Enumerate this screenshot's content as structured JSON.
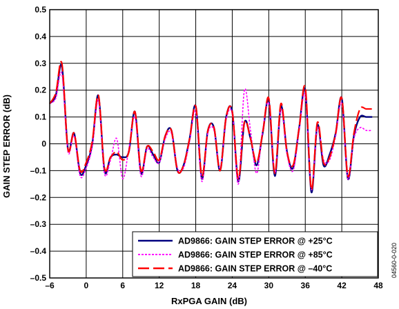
{
  "chart_data": {
    "type": "line",
    "title": "",
    "xlabel": "RxPGA GAIN (dB)",
    "ylabel": "GAIN STEP ERROR (dB)",
    "xlim": [
      -6,
      48
    ],
    "ylim": [
      -0.5,
      0.5
    ],
    "x_ticks": [
      -6,
      0,
      6,
      12,
      18,
      24,
      30,
      36,
      42,
      48
    ],
    "x_tick_labels": [
      "–6",
      "0",
      "6",
      "12",
      "18",
      "24",
      "30",
      "36",
      "42",
      "48"
    ],
    "y_ticks": [
      0.5,
      0.4,
      0.3,
      0.2,
      0.1,
      0,
      -0.1,
      -0.2,
      -0.3,
      -0.4,
      -0.5
    ],
    "y_tick_labels": [
      "0.5",
      "0.4",
      "0.3",
      "0.2",
      "0.1",
      "0",
      "–0.1",
      "–0.2",
      "–0.3",
      "–0.4",
      "–0.5"
    ],
    "grid": true,
    "legend_position": "bottom-right",
    "figure_id": "04560-0-020",
    "series": [
      {
        "name": "AD9866: GAIN STEP ERROR @ +25°C",
        "color": "#00007f",
        "style": "solid",
        "x": [
          -6,
          -5,
          -4,
          -3,
          -2,
          -1,
          0,
          1,
          2,
          3,
          4,
          5,
          6,
          7,
          8,
          9,
          10,
          11,
          12,
          13,
          14,
          15,
          16,
          17,
          18,
          19,
          20,
          21,
          22,
          23,
          24,
          25,
          26,
          27,
          28,
          29,
          30,
          31,
          32,
          33,
          34,
          35,
          36,
          37,
          38,
          39,
          40,
          41,
          42,
          43,
          44,
          45,
          46,
          47
        ],
        "y": [
          0.15,
          0.18,
          0.29,
          -0.02,
          0.04,
          -0.11,
          -0.08,
          0.0,
          0.18,
          -0.1,
          -0.05,
          -0.04,
          -0.05,
          -0.03,
          0.12,
          -0.11,
          -0.01,
          -0.04,
          -0.07,
          0.03,
          0.05,
          -0.1,
          -0.08,
          0.02,
          0.14,
          -0.13,
          0.05,
          0.06,
          -0.1,
          0.1,
          0.12,
          -0.14,
          0.08,
          0.02,
          -0.08,
          0.04,
          0.16,
          -0.12,
          0.14,
          -0.03,
          -0.09,
          0.06,
          0.2,
          -0.18,
          0.07,
          -0.08,
          -0.04,
          0.04,
          0.17,
          -0.13,
          0.03,
          0.1,
          0.1,
          0.1
        ]
      },
      {
        "name": "AD9866: GAIN STEP ERROR @ +85°C",
        "color": "#ff00ff",
        "style": "dotted",
        "x": [
          -6,
          -5,
          -4,
          -3,
          -2,
          -1,
          0,
          1,
          2,
          3,
          4,
          5,
          6,
          7,
          8,
          9,
          10,
          11,
          12,
          13,
          14,
          15,
          16,
          17,
          18,
          19,
          20,
          21,
          22,
          23,
          24,
          25,
          26,
          27,
          28,
          29,
          30,
          31,
          32,
          33,
          34,
          35,
          36,
          37,
          38,
          39,
          40,
          41,
          42,
          43,
          44,
          45,
          46,
          47
        ],
        "y": [
          0.15,
          0.17,
          0.26,
          -0.03,
          0.03,
          -0.12,
          -0.09,
          -0.01,
          0.16,
          -0.11,
          -0.06,
          0.02,
          -0.13,
          -0.02,
          0.1,
          -0.12,
          -0.02,
          -0.05,
          -0.07,
          0.02,
          0.04,
          -0.09,
          -0.09,
          0.01,
          0.12,
          -0.14,
          0.04,
          0.05,
          -0.09,
          0.09,
          0.11,
          -0.15,
          0.2,
          0.05,
          -0.11,
          0.05,
          0.15,
          -0.11,
          0.13,
          -0.04,
          -0.1,
          0.05,
          0.18,
          -0.17,
          0.06,
          -0.06,
          -0.06,
          0.03,
          0.15,
          -0.13,
          0.02,
          0.06,
          0.05,
          0.05
        ]
      },
      {
        "name": "AD9866: GAIN STEP ERROR @ –40°C",
        "color": "#ff0000",
        "style": "dashed",
        "x": [
          -6,
          -5,
          -4,
          -3,
          -2,
          -1,
          0,
          1,
          2,
          3,
          4,
          5,
          6,
          7,
          8,
          9,
          10,
          11,
          12,
          13,
          14,
          15,
          16,
          17,
          18,
          19,
          20,
          21,
          22,
          23,
          24,
          25,
          26,
          27,
          28,
          29,
          30,
          31,
          32,
          33,
          34,
          35,
          36,
          37,
          38,
          39,
          40,
          41,
          42,
          43,
          44,
          45,
          46,
          47
        ],
        "y": [
          0.15,
          0.19,
          0.3,
          -0.02,
          0.04,
          -0.1,
          -0.07,
          0.01,
          0.18,
          -0.09,
          -0.05,
          -0.03,
          -0.06,
          -0.03,
          0.12,
          -0.1,
          -0.01,
          -0.03,
          -0.06,
          0.03,
          0.05,
          -0.1,
          -0.08,
          0.02,
          0.14,
          -0.12,
          0.05,
          0.06,
          -0.1,
          0.1,
          0.12,
          -0.13,
          0.08,
          0.02,
          -0.07,
          0.04,
          0.17,
          -0.11,
          0.15,
          -0.03,
          -0.08,
          0.06,
          0.21,
          -0.17,
          0.08,
          -0.07,
          -0.05,
          0.04,
          0.17,
          -0.12,
          0.04,
          0.13,
          0.13,
          0.13
        ]
      }
    ]
  }
}
